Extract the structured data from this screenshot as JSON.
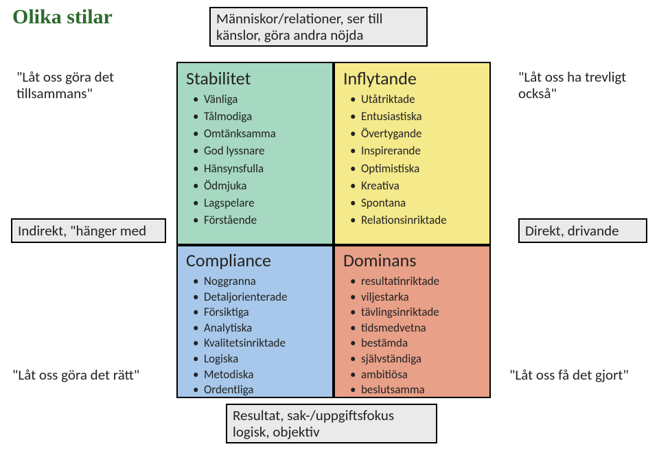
{
  "title": "Olika stilar",
  "axes": {
    "top": "Människor/relationer, ser till känslor, göra andra nöjda",
    "bottom": "Resultat, sak-/uppgiftsfokus logisk, objektiv",
    "left": "Indirekt, \"hänger med",
    "right": "Direkt, drivande"
  },
  "corners": {
    "tl": "\"Låt oss göra det tillsammans\"",
    "tr": "\"Låt oss ha trevligt också\"",
    "bl": "\"Låt oss göra det rätt\"",
    "br": "\"Låt oss få det gjort\""
  },
  "quadrants": {
    "tl": {
      "title": "Stabilitet",
      "bg": "#a6d8c2",
      "items": [
        "Vänliga",
        "Tålmodiga",
        "Omtänksamma",
        "God lyssnare",
        "Hänsynsfulla",
        "Ödmjuka",
        "Lagspelare",
        "Förstående"
      ]
    },
    "tr": {
      "title": "Inflytande",
      "bg": "#f4e98b",
      "items": [
        "Utåtriktade",
        "Entusiastiska",
        "Övertygande",
        "Inspirerande",
        "Optimistiska",
        "Kreativa",
        "Spontana",
        "Relationsinriktade"
      ]
    },
    "bl": {
      "title": "Compliance",
      "bg": "#a7c8ea",
      "items": [
        "Noggranna",
        "Detaljorienterade",
        "Försiktiga",
        "Analytiska",
        "Kvalitetsinriktade",
        "Logiska",
        "Metodiska",
        "Ordentliga"
      ]
    },
    "br": {
      "title": "Dominans",
      "bg": "#e8a088",
      "items": [
        "resultatinriktade",
        "viljestarka",
        "tävlingsinriktade",
        "tidsmedvetna",
        "bestämda",
        "självständiga",
        "ambitiösa",
        "beslutsamma"
      ]
    }
  }
}
